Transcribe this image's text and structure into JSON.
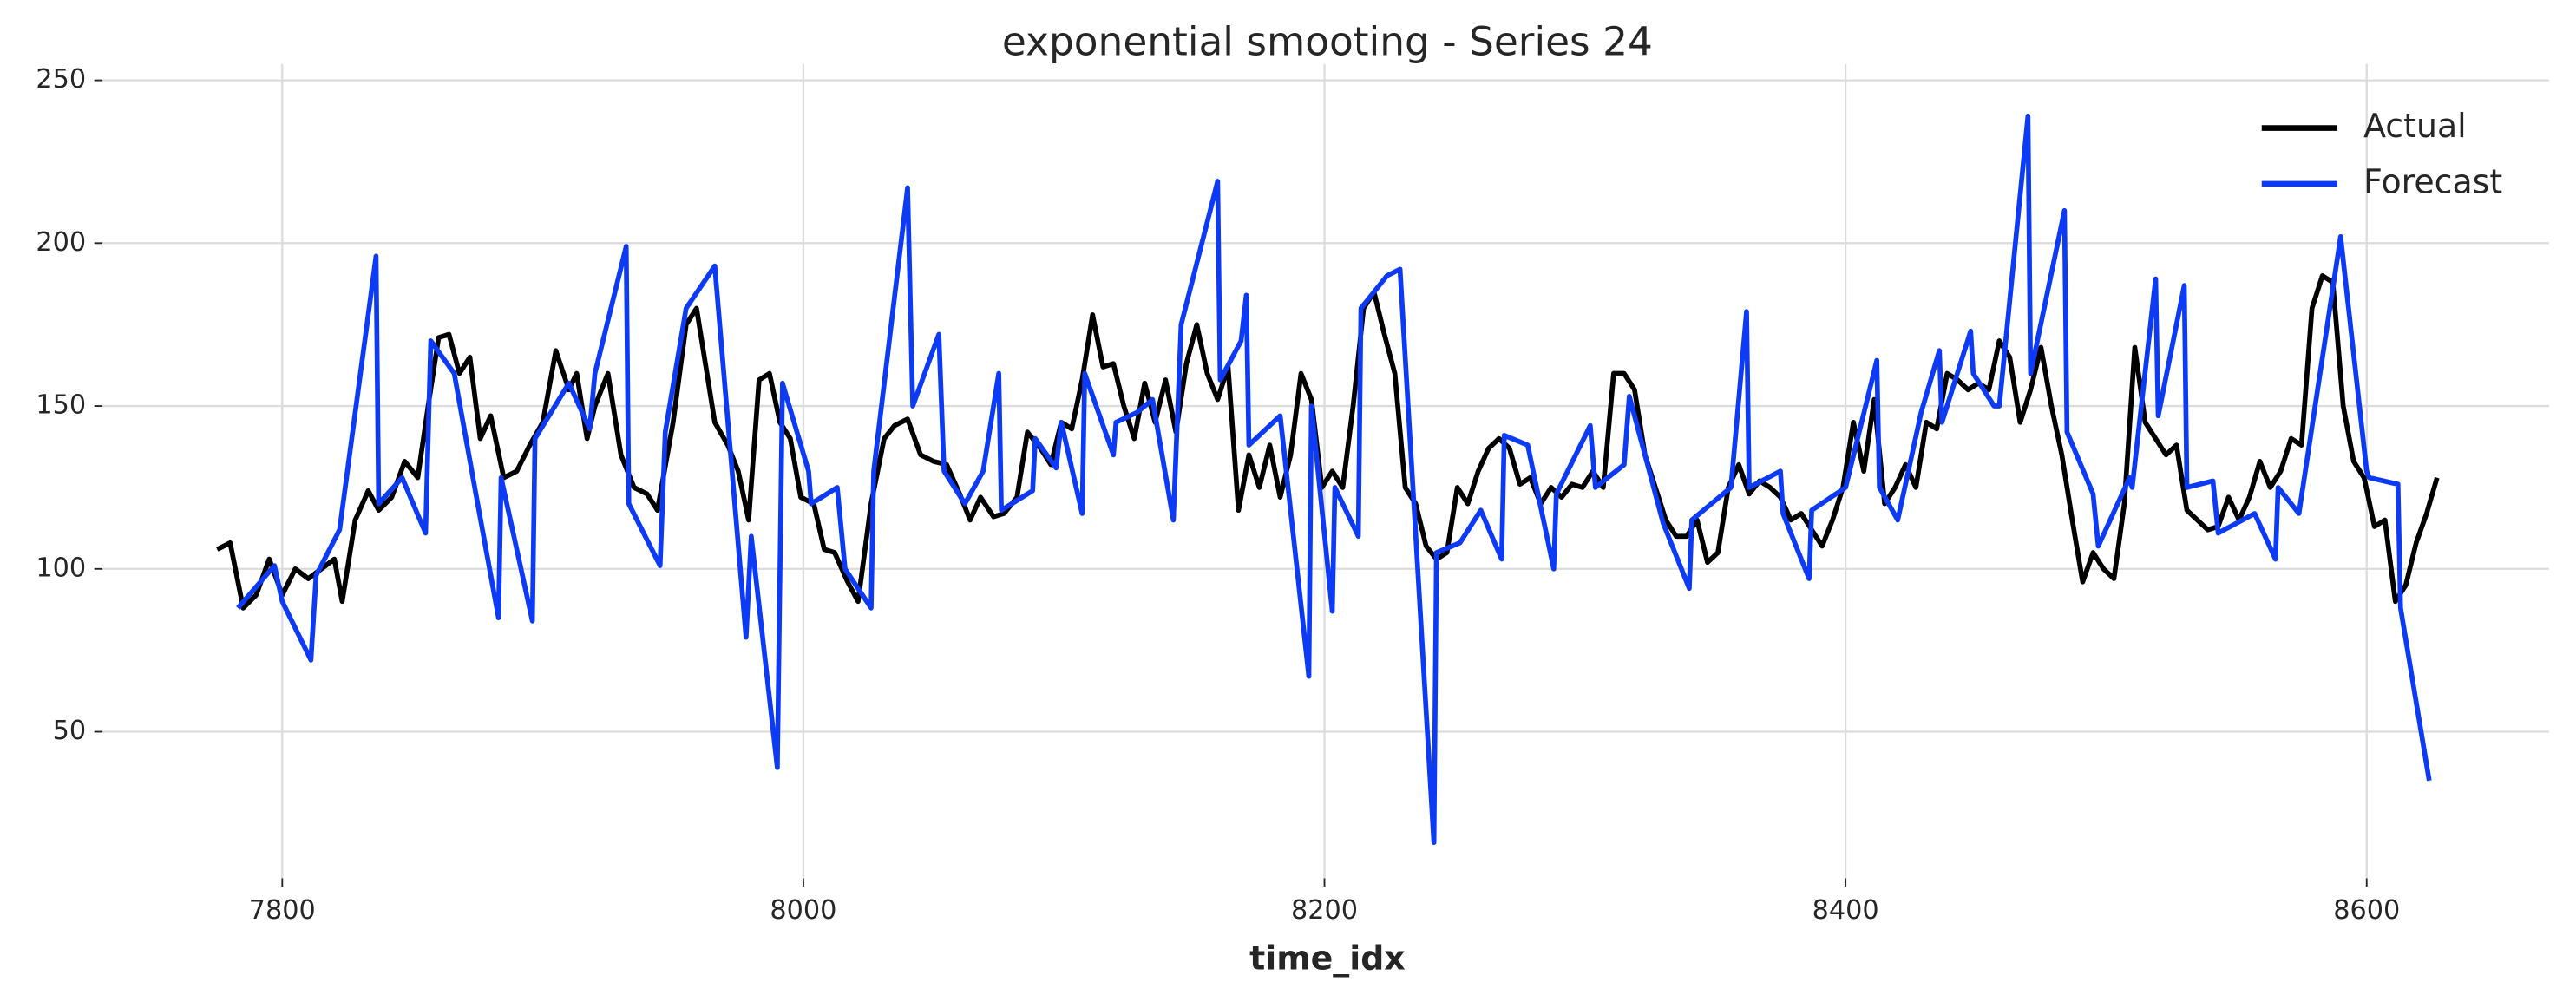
{
  "chart_data": {
    "type": "line",
    "title": "exponential smooting - Series 24",
    "xlabel": "time_idx",
    "xlim": [
      7731,
      8670
    ],
    "ylim": [
      5,
      255
    ],
    "xticks": [
      7800,
      8000,
      8200,
      8400,
      8600
    ],
    "yticks": [
      50,
      100,
      150,
      200,
      250
    ],
    "grid": true,
    "legend": "upper right",
    "series": [
      {
        "name": "Actual",
        "color": "#000000",
        "x": [
          7775,
          7780,
          7785,
          7790,
          7795,
          7800,
          7805,
          7810,
          7815,
          7820,
          7823,
          7828,
          7833,
          7837,
          7842,
          7847,
          7852,
          7856,
          7860,
          7864,
          7868,
          7872,
          7876,
          7880,
          7885,
          7890,
          7895,
          7900,
          7905,
          7910,
          7913,
          7917,
          7920,
          7925,
          7930,
          7935,
          7940,
          7944,
          7950,
          7955,
          7959,
          7962,
          7966,
          7971,
          7975,
          7979,
          7983,
          7987,
          7991,
          7995,
          7999,
          8004,
          8008,
          8012,
          8017,
          8021,
          8026,
          8031,
          8035,
          8040,
          8045,
          8050,
          8055,
          8060,
          8064,
          8068,
          8073,
          8077,
          8082,
          8086,
          8091,
          8095,
          8099,
          8103,
          8107,
          8111,
          8115,
          8119,
          8123,
          8127,
          8131,
          8135,
          8139,
          8143,
          8147,
          8151,
          8155,
          8159,
          8163,
          8167,
          8171,
          8175,
          8179,
          8183,
          8187,
          8191,
          8195,
          8199,
          8203,
          8207,
          8211,
          8215,
          8219,
          8223,
          8227,
          8231,
          8235,
          8239,
          8243,
          8247,
          8251,
          8255,
          8259,
          8263,
          8267,
          8271,
          8275,
          8279,
          8283,
          8287,
          8291,
          8295,
          8299,
          8303,
          8307,
          8311,
          8315,
          8319,
          8323,
          8327,
          8331,
          8335,
          8339,
          8343,
          8347,
          8351,
          8355,
          8359,
          8363,
          8367,
          8371,
          8375,
          8379,
          8383,
          8387,
          8391,
          8395,
          8399,
          8403,
          8407,
          8411,
          8415,
          8419,
          8423,
          8427,
          8431,
          8435,
          8439,
          8443,
          8447,
          8451,
          8455,
          8459,
          8463,
          8467,
          8471,
          8475,
          8479,
          8483,
          8487,
          8491,
          8495,
          8499,
          8503,
          8507,
          8511,
          8515,
          8519,
          8523,
          8527,
          8531,
          8535,
          8539,
          8543,
          8547,
          8551,
          8555,
          8559,
          8563,
          8567,
          8571,
          8575,
          8579,
          8583,
          8587,
          8591,
          8595,
          8599,
          8603,
          8607,
          8611,
          8615,
          8619,
          8623,
          8627
        ],
        "values": [
          106,
          108,
          88,
          92,
          103,
          92,
          100,
          97,
          100,
          103,
          90,
          115,
          124,
          118,
          122,
          133,
          128,
          150,
          171,
          172,
          160,
          165,
          140,
          147,
          128,
          130,
          138,
          145,
          167,
          155,
          160,
          140,
          150,
          160,
          135,
          125,
          123,
          118,
          145,
          175,
          180,
          165,
          145,
          138,
          130,
          115,
          158,
          160,
          145,
          140,
          122,
          120,
          106,
          105,
          96,
          90,
          120,
          140,
          144,
          146,
          135,
          133,
          132,
          123,
          115,
          122,
          116,
          117,
          122,
          142,
          137,
          132,
          145,
          143,
          158,
          178,
          162,
          163,
          150,
          140,
          157,
          145,
          158,
          142,
          163,
          175,
          160,
          152,
          162,
          118,
          135,
          125,
          138,
          122,
          135,
          160,
          152,
          125,
          130,
          125,
          150,
          180,
          185,
          172,
          160,
          125,
          120,
          107,
          103,
          105,
          125,
          120,
          130,
          137,
          140,
          137,
          126,
          128,
          120,
          125,
          122,
          126,
          125,
          130,
          125,
          160,
          160,
          155,
          135,
          125,
          115,
          110,
          110,
          115,
          102,
          105,
          125,
          132,
          123,
          127,
          125,
          122,
          115,
          117,
          112,
          107,
          115,
          125,
          145,
          130,
          152,
          120,
          125,
          132,
          125,
          145,
          143,
          160,
          158,
          155,
          157,
          155,
          170,
          165,
          145,
          155,
          168,
          150,
          135,
          115,
          96,
          105,
          100,
          97,
          120,
          168,
          145,
          140,
          135,
          138,
          118,
          115,
          112,
          113,
          122,
          115,
          122,
          133,
          125,
          130,
          140,
          138,
          180,
          190,
          188,
          150,
          133,
          128,
          113,
          115,
          90,
          95,
          108,
          117,
          128
        ]
      },
      {
        "name": "Forecast",
        "color": "#0d3bf5",
        "x": [
          7783,
          7797,
          7800,
          7811,
          7813,
          7822,
          7836,
          7837,
          7846,
          7855,
          7857,
          7866,
          7875,
          7883,
          7884,
          7896,
          7897,
          7910,
          7918,
          7920,
          7932,
          7933,
          7945,
          7947,
          7955,
          7966,
          7978,
          7980,
          7990,
          7992,
          8002,
          8003,
          8013,
          8016,
          8026,
          8027,
          8040,
          8042,
          8052,
          8054,
          8062,
          8069,
          8075,
          8076,
          8088,
          8089,
          8097,
          8099,
          8107,
          8108,
          8119,
          8120,
          8128,
          8134,
          8142,
          8145,
          8159,
          8160,
          8168,
          8170,
          8171,
          8183,
          8194,
          8195,
          8203,
          8204,
          8213,
          8214,
          8224,
          8229,
          8242,
          8243,
          8252,
          8260,
          8268,
          8269,
          8278,
          8288,
          8289,
          8302,
          8304,
          8315,
          8317,
          8330,
          8340,
          8341,
          8356,
          8362,
          8363,
          8375,
          8376,
          8386,
          8387,
          8400,
          8412,
          8413,
          8420,
          8429,
          8436,
          8437,
          8448,
          8449,
          8457,
          8459,
          8470,
          8471,
          8484,
          8485,
          8495,
          8497,
          8509,
          8510,
          8519,
          8520,
          8530,
          8531,
          8541,
          8543,
          8557,
          8565,
          8566,
          8574,
          8590,
          8600,
          8601,
          8612,
          8613,
          8624
        ],
        "values": [
          88,
          101,
          90,
          72,
          98,
          112,
          196,
          120,
          128,
          111,
          170,
          160,
          120,
          85,
          128,
          84,
          140,
          157,
          143,
          160,
          199,
          120,
          101,
          142,
          180,
          193,
          79,
          110,
          39,
          157,
          130,
          120,
          125,
          100,
          88,
          130,
          217,
          150,
          172,
          130,
          120,
          130,
          160,
          118,
          124,
          140,
          131,
          145,
          117,
          160,
          135,
          145,
          148,
          152,
          115,
          175,
          219,
          158,
          170,
          184,
          138,
          147,
          67,
          150,
          87,
          125,
          110,
          180,
          190,
          192,
          16,
          105,
          108,
          118,
          103,
          141,
          138,
          100,
          123,
          144,
          125,
          132,
          153,
          114,
          94,
          115,
          125,
          179,
          125,
          130,
          117,
          97,
          118,
          125,
          164,
          125,
          115,
          148,
          167,
          145,
          173,
          160,
          150,
          150,
          239,
          160,
          210,
          142,
          123,
          107,
          128,
          125,
          189,
          147,
          187,
          125,
          127,
          111,
          117,
          103,
          125,
          117,
          202,
          130,
          128,
          126,
          88,
          35
        ]
      }
    ]
  }
}
